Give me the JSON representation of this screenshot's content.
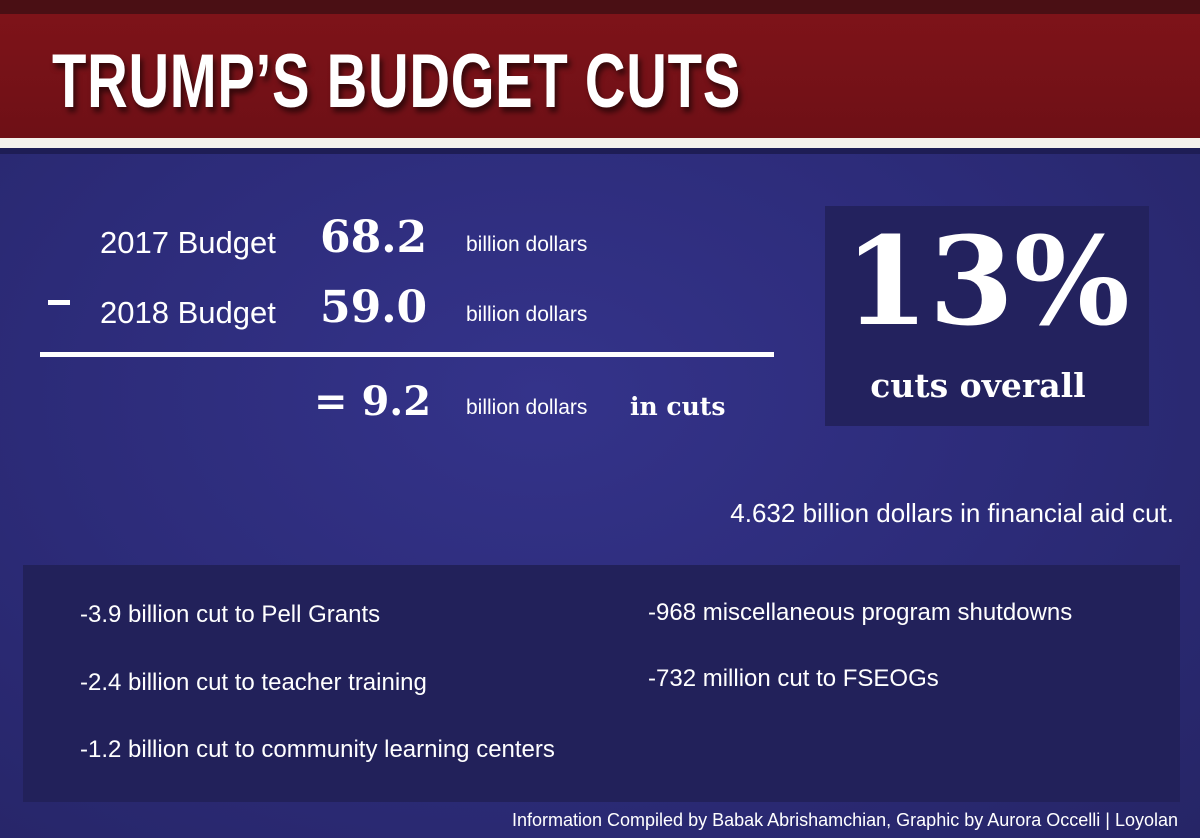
{
  "header": {
    "title": "TRUMP’S BUDGET CUTS"
  },
  "equation": {
    "row1": {
      "label": "2017 Budget",
      "value": "68.2",
      "unit": "billion dollars"
    },
    "row2": {
      "label": "2018 Budget",
      "value": "59.0",
      "unit": "billion dollars"
    },
    "result": {
      "value": "= 9.2",
      "unit": "billion dollars",
      "suffix": "in cuts"
    }
  },
  "summary": {
    "percent": "13%",
    "label": "cuts overall"
  },
  "financial_aid_note": "4.632 billion dollars in financial aid cut.",
  "cuts_list": {
    "left": [
      "-3.9 billion cut to Pell Grants",
      "-2.4 billion cut to teacher training",
      "-1.2 billion cut to community learning centers"
    ],
    "right": [
      "-968 miscellaneous program shutdowns",
      "-732 million cut to FSEOGs"
    ]
  },
  "credit": "Information Compiled by  Babak Abrishamchian, Graphic by Aurora Occelli | Loyolan",
  "colors": {
    "header_red": "#7e1319",
    "background_blue": "#2c2b78",
    "panel_blue": "#22215a",
    "text": "#ffffff"
  }
}
